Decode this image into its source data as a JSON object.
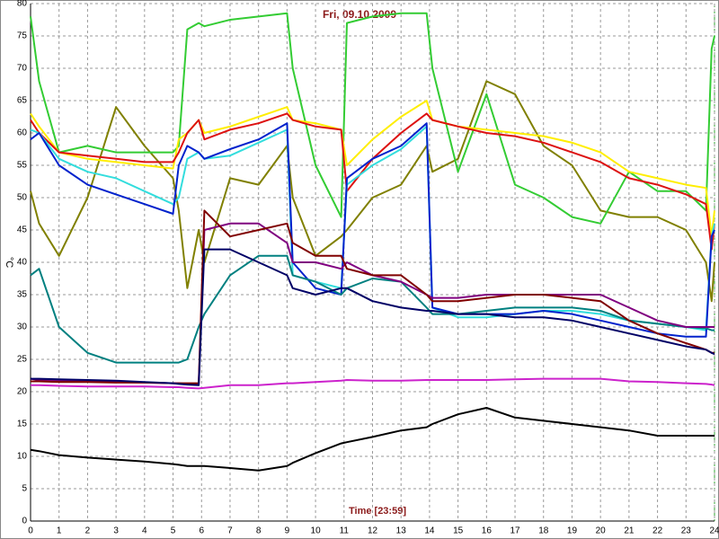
{
  "chart_data": {
    "type": "line",
    "title": "Fri, 09.10.2009",
    "x_label": "Time [23:59]",
    "y_label": "°C",
    "x": [
      0,
      0.3,
      1,
      2,
      3,
      4,
      5,
      5.2,
      5.5,
      5.9,
      6.1,
      7,
      8,
      9,
      9.2,
      10,
      10.9,
      11.1,
      12,
      13,
      13.9,
      14.1,
      15,
      16,
      17,
      18,
      19,
      20,
      21,
      22,
      23,
      23.7,
      23.9,
      24
    ],
    "xlim": [
      0,
      24
    ],
    "xticks": [
      0,
      1,
      2,
      3,
      4,
      5,
      6,
      7,
      8,
      9,
      10,
      11,
      12,
      13,
      14,
      15,
      16,
      17,
      18,
      19,
      20,
      21,
      22,
      23,
      24
    ],
    "ylim": [
      0,
      80
    ],
    "yticks": [
      0,
      5,
      10,
      15,
      20,
      25,
      30,
      35,
      40,
      45,
      50,
      55,
      60,
      65,
      70,
      75,
      80
    ],
    "grid": true,
    "series": [
      {
        "color": "#808000",
        "values": [
          51,
          46,
          41,
          50,
          64,
          58,
          53,
          48,
          36,
          45,
          40,
          53,
          52,
          58,
          50,
          41,
          44,
          45,
          50,
          52,
          58,
          54,
          56,
          68,
          66,
          58,
          55,
          48,
          47,
          47,
          45,
          40,
          34,
          40
        ]
      },
      {
        "color": "#33cc33",
        "values": [
          78,
          68,
          57,
          58,
          57,
          57,
          57,
          58,
          76,
          77,
          76.5,
          77.5,
          78,
          78.5,
          70,
          55,
          47,
          77,
          78,
          78.5,
          78.5,
          70,
          54,
          66,
          52,
          50,
          47,
          46,
          54,
          51,
          51,
          48,
          73,
          75
        ]
      },
      {
        "color": "#ffee00",
        "values": [
          63,
          61,
          57,
          56,
          55.5,
          55,
          54.5,
          59,
          60,
          62,
          60,
          61,
          62.5,
          64,
          62,
          61.5,
          60.5,
          55,
          59,
          62.5,
          65,
          62,
          61,
          60.5,
          60,
          59.5,
          58.5,
          57,
          54,
          53,
          52,
          51.5,
          44,
          48
        ]
      },
      {
        "color": "#dd1111",
        "values": [
          62,
          60,
          57,
          56.5,
          56,
          55.5,
          55.5,
          57,
          60,
          62,
          59,
          60.5,
          61.5,
          63,
          62,
          61,
          60.5,
          51,
          56,
          60,
          63,
          62,
          61,
          60,
          59.5,
          58.5,
          57,
          55.5,
          53,
          52,
          50.5,
          49,
          42,
          46
        ]
      },
      {
        "color": "#33dddd",
        "values": [
          60.5,
          60,
          56,
          54,
          53,
          51,
          49,
          50,
          56,
          57,
          56,
          56.5,
          58.5,
          60.5,
          38,
          37,
          36,
          52,
          55,
          57.5,
          61,
          33,
          31.5,
          31.5,
          32,
          32.5,
          32.5,
          32,
          31,
          30.5,
          30,
          29.5,
          44,
          46
        ]
      },
      {
        "color": "#0022cc",
        "values": [
          59,
          60,
          55,
          52,
          50.5,
          49,
          47.5,
          55,
          58,
          57,
          56,
          57.5,
          59,
          61.5,
          40,
          36,
          35,
          53,
          56,
          58,
          61.5,
          33,
          32,
          32,
          32,
          32.5,
          32,
          31,
          30,
          29,
          28.5,
          28.5,
          44,
          45
        ]
      },
      {
        "color": "#008080",
        "values": [
          38,
          39,
          30,
          26,
          24.5,
          24.5,
          24.5,
          24.5,
          25,
          30,
          32,
          38,
          41,
          41,
          38,
          37,
          35,
          36,
          37.5,
          37,
          33,
          32,
          32,
          32.5,
          33,
          33,
          33,
          32.5,
          31,
          30.5,
          30,
          29.8,
          29.5,
          29.5
        ]
      },
      {
        "color": "#800080",
        "values": [
          22,
          21.8,
          21.7,
          21.6,
          21.5,
          21.4,
          21.3,
          21.3,
          21.2,
          21.2,
          45,
          46,
          46,
          43,
          40,
          40,
          39,
          40,
          38,
          37,
          35,
          34.5,
          34.5,
          35,
          35,
          35,
          35,
          35,
          33,
          31,
          30,
          30,
          30,
          30
        ]
      },
      {
        "color": "#800000",
        "values": [
          21.6,
          21.6,
          21.5,
          21.5,
          21.4,
          21.4,
          21.3,
          21.3,
          21.3,
          21.3,
          48,
          44,
          45,
          46,
          43,
          41,
          41,
          39,
          38,
          38,
          35,
          34,
          34,
          34.5,
          35,
          35,
          34.5,
          34,
          31,
          29,
          27.5,
          26.5,
          26,
          26
        ]
      },
      {
        "color": "#000066",
        "values": [
          22,
          22,
          21.9,
          21.8,
          21.7,
          21.5,
          21.3,
          21.2,
          21.1,
          21,
          42,
          42,
          40,
          38,
          36,
          35,
          36,
          36,
          34,
          33,
          32.5,
          32.5,
          32,
          32,
          31.5,
          31.5,
          31,
          30,
          29,
          28,
          27,
          26.5,
          26,
          25.8
        ]
      },
      {
        "color": "#cc22cc",
        "values": [
          21,
          21,
          20.9,
          20.8,
          20.8,
          20.8,
          20.7,
          20.7,
          20.6,
          20.5,
          20.6,
          21,
          21,
          21.3,
          21.3,
          21.5,
          21.7,
          21.8,
          21.7,
          21.7,
          21.8,
          21.8,
          21.8,
          21.8,
          21.9,
          22,
          22,
          22,
          21.6,
          21.5,
          21.3,
          21.2,
          21.1,
          21
        ]
      },
      {
        "color": "#000000",
        "values": [
          11,
          10.8,
          10.2,
          9.8,
          9.5,
          9.2,
          8.8,
          8.7,
          8.5,
          8.5,
          8.5,
          8.2,
          7.8,
          8.5,
          9,
          10.5,
          12,
          12.2,
          13,
          14,
          14.5,
          15,
          16.5,
          17.5,
          16,
          15.5,
          15,
          14.5,
          14,
          13.2,
          13.2,
          13.2,
          13.2,
          13.2
        ]
      }
    ]
  }
}
